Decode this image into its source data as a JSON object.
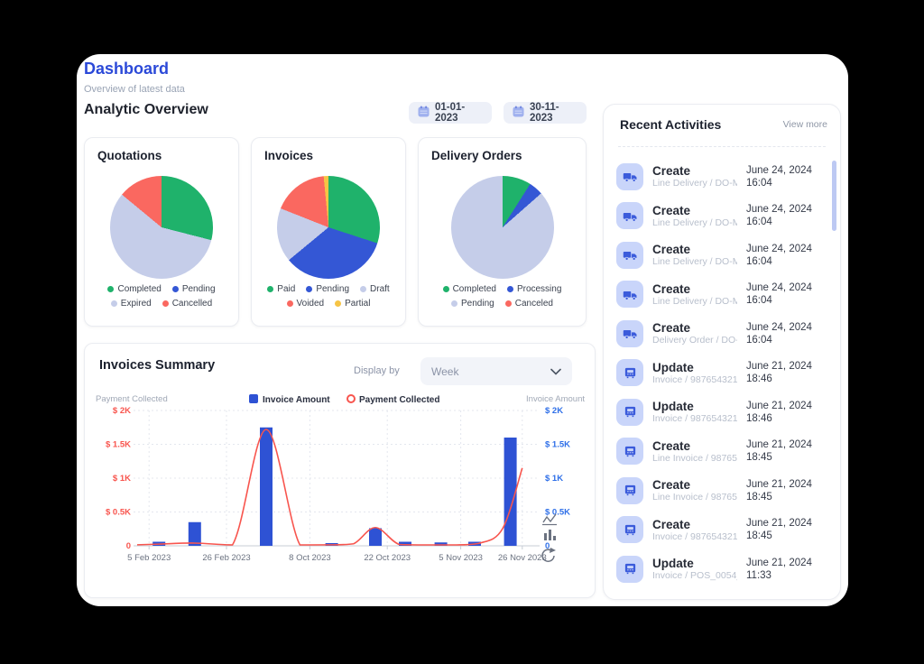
{
  "header": {
    "title": "Dashboard",
    "subtitle": "Overview of latest data",
    "section_title": "Analytic Overview"
  },
  "date_range": {
    "start": "01-01-2023",
    "end": "30-11-2023"
  },
  "summary": {
    "title": "Invoices Summary",
    "display_by_label": "Display by",
    "display_by_value": "Week"
  },
  "recent": {
    "title": "Recent Activities",
    "view_more_label": "View more",
    "items": [
      {
        "icon": "truck",
        "action": "Create",
        "detail": "Line Delivery / DO-MO...",
        "date": "June 24, 2024",
        "time": "16:04"
      },
      {
        "icon": "truck",
        "action": "Create",
        "detail": "Line Delivery / DO-MO...",
        "date": "June 24, 2024",
        "time": "16:04"
      },
      {
        "icon": "truck",
        "action": "Create",
        "detail": "Line Delivery / DO-MO...",
        "date": "June 24, 2024",
        "time": "16:04"
      },
      {
        "icon": "truck",
        "action": "Create",
        "detail": "Line Delivery / DO-MO...",
        "date": "June 24, 2024",
        "time": "16:04"
      },
      {
        "icon": "truck",
        "action": "Create",
        "detail": "Delivery Order / DO-M...",
        "date": "June 24, 2024",
        "time": "16:04"
      },
      {
        "icon": "invoice",
        "action": "Update",
        "detail": "Invoice / 9876543210...",
        "date": "June 21, 2024",
        "time": "18:46"
      },
      {
        "icon": "invoice",
        "action": "Update",
        "detail": "Invoice / 9876543210...",
        "date": "June 21, 2024",
        "time": "18:46"
      },
      {
        "icon": "invoice",
        "action": "Create",
        "detail": "Line Invoice / 987654...",
        "date": "June 21, 2024",
        "time": "18:45"
      },
      {
        "icon": "invoice",
        "action": "Create",
        "detail": "Line Invoice / 987654...",
        "date": "June 21, 2024",
        "time": "18:45"
      },
      {
        "icon": "invoice",
        "action": "Create",
        "detail": "Invoice / 9876543210...",
        "date": "June 21, 2024",
        "time": "18:45"
      },
      {
        "icon": "invoice",
        "action": "Update",
        "detail": "Invoice / POS_0054_...",
        "date": "June 21, 2024",
        "time": "11:33"
      }
    ]
  },
  "colors": {
    "accent_blue": "#2b49d8",
    "pie_green": "#1fb26b",
    "pie_blue": "#3457d5",
    "pie_lavender": "#c5cde9",
    "pie_red": "#fa6860",
    "pie_yellow": "#f6c445",
    "bar_blue": "#2e52d4",
    "line_red": "#f8554e",
    "left_axis_red": "#f8554e",
    "right_axis_blue": "#2e6fe8"
  },
  "chart_data": [
    {
      "id": "quotations",
      "type": "pie",
      "title": "Quotations",
      "slices": [
        {
          "label": "Completed",
          "value": 29,
          "color": "#1fb26b"
        },
        {
          "label": "Pending",
          "value": 0,
          "color": "#3457d5"
        },
        {
          "label": "Expired",
          "value": 57,
          "color": "#c5cde9"
        },
        {
          "label": "Cancelled",
          "value": 14,
          "color": "#fa6860"
        }
      ]
    },
    {
      "id": "invoices",
      "type": "pie",
      "title": "Invoices",
      "slices": [
        {
          "label": "Paid",
          "value": 30,
          "color": "#1fb26b"
        },
        {
          "label": "Pending",
          "value": 34,
          "color": "#3457d5"
        },
        {
          "label": "Draft",
          "value": 17,
          "color": "#c5cde9"
        },
        {
          "label": "Voided",
          "value": 17.5,
          "color": "#fa6860"
        },
        {
          "label": "Partial",
          "value": 1.5,
          "color": "#f6c445"
        }
      ]
    },
    {
      "id": "delivery_orders",
      "type": "pie",
      "title": "Delivery Orders",
      "slices": [
        {
          "label": "Completed",
          "value": 9,
          "color": "#1fb26b"
        },
        {
          "label": "Processing",
          "value": 4.5,
          "color": "#3457d5"
        },
        {
          "label": "Pending",
          "value": 86.5,
          "color": "#c5cde9"
        },
        {
          "label": "Canceled",
          "value": 0,
          "color": "#fa6860"
        }
      ]
    },
    {
      "id": "invoices_summary",
      "type": "combo",
      "title": "Invoices Summary",
      "left_axis_label": "Payment Collected",
      "right_axis_label": "Invoice Amount",
      "legend": [
        {
          "label": "Invoice Amount",
          "color": "#2e52d4",
          "shape": "square"
        },
        {
          "label": "Payment Collected",
          "color": "#f8554e",
          "shape": "ring"
        }
      ],
      "ylim": [
        0,
        2000
      ],
      "y_ticks": [
        "$ 2K",
        "$ 1.5K",
        "$ 1K",
        "$ 0.5K",
        "0"
      ],
      "x_ticks": [
        {
          "label": "5 Feb 2023",
          "pos": 0.03
        },
        {
          "label": "26 Feb 2023",
          "pos": 0.225
        },
        {
          "label": "8 Oct 2023",
          "pos": 0.435
        },
        {
          "label": "22 Oct 2023",
          "pos": 0.63
        },
        {
          "label": "5 Nov 2023",
          "pos": 0.815
        },
        {
          "label": "26 Nov 2023",
          "pos": 0.97
        }
      ],
      "bars": [
        {
          "pos": 0.055,
          "value": 60
        },
        {
          "pos": 0.145,
          "value": 350
        },
        {
          "pos": 0.325,
          "value": 1750
        },
        {
          "pos": 0.49,
          "value": 40
        },
        {
          "pos": 0.6,
          "value": 260
        },
        {
          "pos": 0.675,
          "value": 60
        },
        {
          "pos": 0.765,
          "value": 50
        },
        {
          "pos": 0.85,
          "value": 60
        },
        {
          "pos": 0.94,
          "value": 1600
        }
      ],
      "line": [
        {
          "pos": 0,
          "value": 15
        },
        {
          "pos": 0.055,
          "value": 25
        },
        {
          "pos": 0.145,
          "value": 40
        },
        {
          "pos": 0.24,
          "value": 10
        },
        {
          "pos": 0.325,
          "value": 1720
        },
        {
          "pos": 0.41,
          "value": 10
        },
        {
          "pos": 0.49,
          "value": 15
        },
        {
          "pos": 0.545,
          "value": 30
        },
        {
          "pos": 0.6,
          "value": 270
        },
        {
          "pos": 0.66,
          "value": 20
        },
        {
          "pos": 0.73,
          "value": 10
        },
        {
          "pos": 0.8,
          "value": 10
        },
        {
          "pos": 0.86,
          "value": 35
        },
        {
          "pos": 0.92,
          "value": 250
        },
        {
          "pos": 0.97,
          "value": 1150
        }
      ]
    }
  ]
}
